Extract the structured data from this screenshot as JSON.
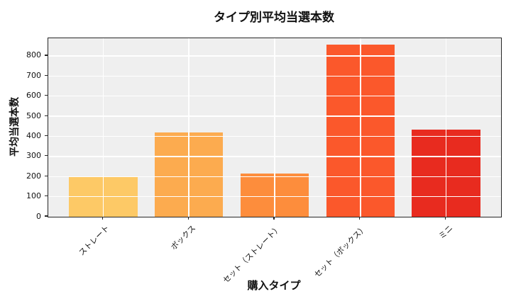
{
  "chart_data": {
    "type": "bar",
    "title": "タイプ別平均当選本数",
    "xlabel": "購入タイプ",
    "ylabel": "平均当選本数",
    "categories": [
      "ストレート",
      "ボックス",
      "セット（ストレート）",
      "セット（ボックス）",
      "ミニ"
    ],
    "values": [
      197,
      418,
      214,
      855,
      432
    ],
    "bar_colors": [
      "#fdc966",
      "#fcab4f",
      "#fd8d3c",
      "#fb582b",
      "#e82b1f"
    ],
    "ylim": [
      0,
      888
    ],
    "yticks": [
      0,
      100,
      200,
      300,
      400,
      500,
      600,
      700,
      800
    ],
    "grid": "white x+y gridlines drawn over bars",
    "plot_bg_color": "#efefef",
    "figure_bg_color": "#ffffff",
    "legend": "none"
  }
}
